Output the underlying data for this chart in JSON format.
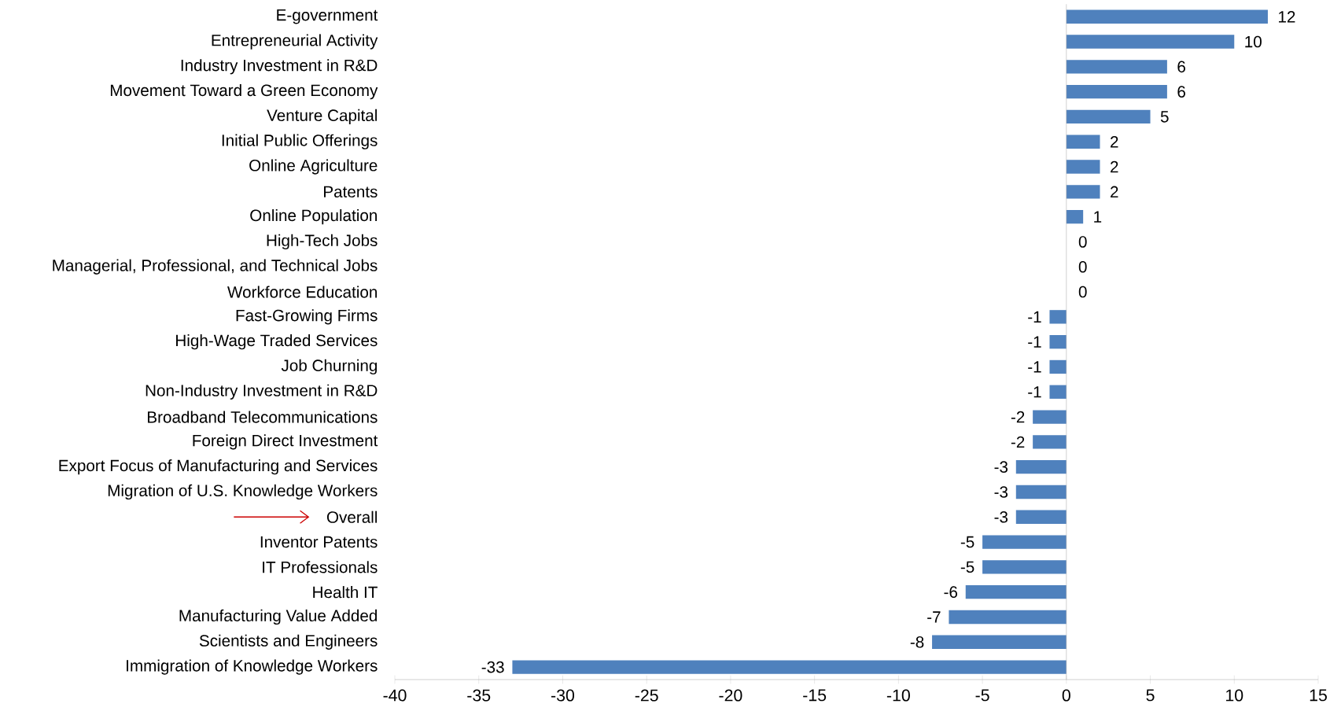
{
  "chart_data": {
    "type": "bar",
    "orientation": "horizontal",
    "categories": [
      "E-government",
      "Entrepreneurial Activity",
      "Industry Investment in R&D",
      "Movement Toward a Green Economy",
      "Venture Capital",
      "Initial Public Offerings",
      "Online Agriculture",
      "Patents",
      "Online Population",
      "High-Tech Jobs",
      "Managerial, Professional, and Technical Jobs",
      "Workforce Education",
      "Fast-Growing Firms",
      "High-Wage Traded Services",
      "Job Churning",
      "Non-Industry Investment in R&D",
      "Broadband Telecommunications",
      "Foreign Direct Investment",
      "Export Focus of Manufacturing and Services",
      "Migration of U.S. Knowledge Workers",
      "Overall",
      "Inventor Patents",
      "IT Professionals",
      "Health IT",
      "Manufacturing Value Added",
      "Scientists and Engineers",
      "Immigration of Knowledge Workers"
    ],
    "values": [
      12,
      10,
      6,
      6,
      5,
      2,
      2,
      2,
      1,
      0,
      0,
      0,
      -1,
      -1,
      -1,
      -1,
      -2,
      -2,
      -3,
      -3,
      -3,
      -5,
      -5,
      -6,
      -7,
      -8,
      -33
    ],
    "color": "#4f81bd",
    "xlim": [
      -40,
      15
    ],
    "xticks": [
      -40,
      -35,
      -30,
      -25,
      -20,
      -15,
      -10,
      -5,
      0,
      5,
      10,
      15
    ],
    "data_labels": true
  }
}
